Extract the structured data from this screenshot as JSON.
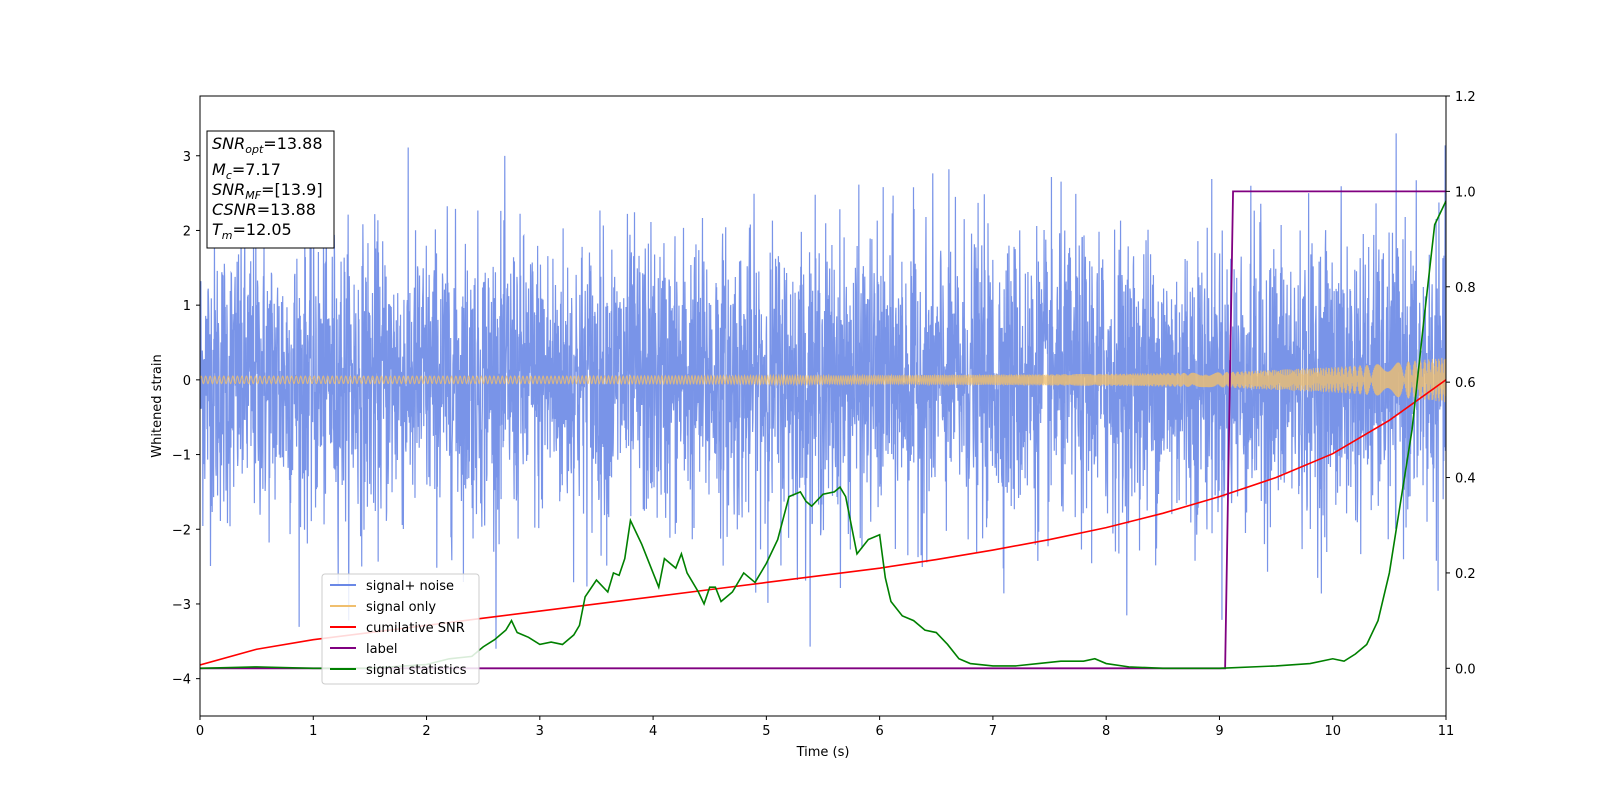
{
  "chart_data": {
    "type": "line",
    "title": "",
    "xlabel": "Time (s)",
    "ylabel": "Whitened strain",
    "xlim": [
      0,
      11
    ],
    "ylim_left": [
      -4.5,
      3.8
    ],
    "ylim_right": [
      -0.1,
      1.2
    ],
    "x_ticks": [
      0,
      1,
      2,
      3,
      4,
      5,
      6,
      7,
      8,
      9,
      10,
      11
    ],
    "y_ticks_left": [
      -4,
      -3,
      -2,
      -1,
      0,
      1,
      2,
      3
    ],
    "y_ticks_left_labels": [
      "−4",
      "−3",
      "−2",
      "−1",
      "0",
      "1",
      "2",
      "3"
    ],
    "y_ticks_right": [
      0.0,
      0.2,
      0.4,
      0.6,
      0.8,
      1.0,
      1.2
    ],
    "y_ticks_right_labels": [
      "0.0",
      "0.2",
      "0.4",
      "0.6",
      "0.8",
      "1.0",
      "1.2"
    ],
    "grid": false,
    "legend_position": "lower-left",
    "colors": {
      "signal_noise": "#6a88e6",
      "signal_only": "#f0bf6e",
      "cumulative_snr": "#ff0000",
      "label": "#800080",
      "signal_statistics": "#008000"
    },
    "series": [
      {
        "name": "signal+ noise",
        "axis": "left",
        "description_values": "noise-dominated whitened strain, approximately within [-2.5, 2.5] with peaks to about 3.3 and dips to about -3.6",
        "envelope_min": -3.6,
        "envelope_max": 3.3
      },
      {
        "name": "signal only",
        "axis": "left",
        "amplitude_points": [
          [
            0,
            0.05
          ],
          [
            3,
            0.05
          ],
          [
            6,
            0.06
          ],
          [
            8,
            0.08
          ],
          [
            9,
            0.1
          ],
          [
            10,
            0.17
          ],
          [
            10.5,
            0.22
          ],
          [
            11,
            0.3
          ]
        ]
      },
      {
        "name": "cumilative SNR",
        "axis": "right",
        "x": [
          0,
          0.5,
          1,
          1.5,
          2,
          2.5,
          3,
          3.5,
          4,
          4.5,
          5,
          5.5,
          6,
          6.5,
          7,
          7.5,
          8,
          8.5,
          9,
          9.5,
          10,
          10.5,
          11
        ],
        "values": [
          0.007,
          0.04,
          0.06,
          0.075,
          0.09,
          0.105,
          0.12,
          0.135,
          0.15,
          0.165,
          0.18,
          0.195,
          0.21,
          0.228,
          0.248,
          0.27,
          0.295,
          0.325,
          0.36,
          0.4,
          0.45,
          0.52,
          0.605
        ]
      },
      {
        "name": "label",
        "axis": "right",
        "x": [
          0,
          9.05,
          9.12,
          11
        ],
        "values": [
          0,
          0,
          1,
          1
        ]
      },
      {
        "name": "signal statistics",
        "axis": "right",
        "x": [
          0,
          0.5,
          1,
          1.5,
          2,
          2.2,
          2.4,
          2.5,
          2.6,
          2.7,
          2.75,
          2.8,
          2.9,
          3.0,
          3.1,
          3.2,
          3.3,
          3.35,
          3.4,
          3.5,
          3.6,
          3.65,
          3.7,
          3.75,
          3.8,
          3.85,
          3.9,
          4.0,
          4.05,
          4.1,
          4.2,
          4.25,
          4.3,
          4.4,
          4.45,
          4.5,
          4.55,
          4.6,
          4.7,
          4.8,
          4.9,
          5.0,
          5.1,
          5.2,
          5.3,
          5.35,
          5.4,
          5.5,
          5.6,
          5.65,
          5.7,
          5.8,
          5.9,
          6.0,
          6.05,
          6.1,
          6.2,
          6.3,
          6.4,
          6.5,
          6.6,
          6.7,
          6.8,
          7.0,
          7.2,
          7.4,
          7.6,
          7.8,
          7.9,
          8.0,
          8.2,
          8.5,
          9.0,
          9.5,
          9.8,
          10.0,
          10.1,
          10.2,
          10.3,
          10.4,
          10.5,
          10.6,
          10.7,
          10.8,
          10.9,
          11.0
        ],
        "values": [
          0.0,
          0.003,
          0.0,
          0.0,
          0.008,
          0.02,
          0.025,
          0.045,
          0.06,
          0.08,
          0.1,
          0.075,
          0.065,
          0.05,
          0.055,
          0.05,
          0.07,
          0.09,
          0.15,
          0.185,
          0.16,
          0.2,
          0.195,
          0.23,
          0.31,
          0.285,
          0.26,
          0.2,
          0.17,
          0.23,
          0.21,
          0.24,
          0.2,
          0.16,
          0.135,
          0.17,
          0.17,
          0.14,
          0.16,
          0.2,
          0.18,
          0.22,
          0.27,
          0.36,
          0.37,
          0.35,
          0.34,
          0.365,
          0.37,
          0.38,
          0.36,
          0.24,
          0.27,
          0.28,
          0.19,
          0.14,
          0.11,
          0.1,
          0.08,
          0.075,
          0.05,
          0.02,
          0.01,
          0.005,
          0.005,
          0.01,
          0.015,
          0.015,
          0.02,
          0.01,
          0.003,
          0.0,
          0.0,
          0.005,
          0.01,
          0.02,
          0.015,
          0.03,
          0.05,
          0.1,
          0.2,
          0.35,
          0.5,
          0.72,
          0.93,
          0.98
        ]
      }
    ]
  },
  "stats_box": {
    "lines": [
      {
        "main": "SNR",
        "sub": "opt",
        "value": "=13.88"
      },
      {
        "main": "M",
        "sub": "c",
        "value": "=7.17"
      },
      {
        "main": "SNR",
        "sub": "MF",
        "value": "=[13.9]"
      },
      {
        "main": "CSNR",
        "sub": "",
        "value": "=13.88"
      },
      {
        "main": "T",
        "sub": "m",
        "value": "=12.05"
      }
    ]
  }
}
